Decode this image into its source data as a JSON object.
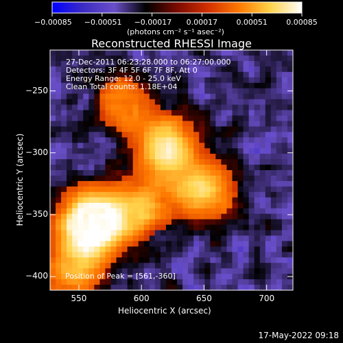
{
  "chart_data": {
    "type": "heatmap",
    "title": "Reconstructed RHESSI Image",
    "xlabel": "Heliocentric X (arcsec)",
    "ylabel": "Heliocentric Y (arcsec)",
    "xlim": [
      527,
      721
    ],
    "ylim": [
      -411,
      -217
    ],
    "x_ticks": [
      550,
      600,
      650,
      700
    ],
    "y_ticks": [
      -250,
      -300,
      -350,
      -400
    ],
    "x_tick_labels": [
      "550",
      "600",
      "650",
      "700"
    ],
    "y_tick_labels": [
      "−250",
      "−300",
      "−350",
      "−400"
    ],
    "colorbar": {
      "range": [
        -0.00085,
        0.00085
      ],
      "tick_labels": [
        "−0.00085",
        "−0.00051",
        "−0.00017",
        "0.00017",
        "0.00051",
        "0.00085"
      ],
      "unit_label": "(photons cm⁻² s⁻¹ asec⁻²)",
      "colormap": [
        "#0000ff",
        "#3d2cc4",
        "#6a4fc8",
        "#000000",
        "#7a0a00",
        "#d23000",
        "#ff7a00",
        "#ffd34a",
        "#ffffff"
      ]
    },
    "annotations": {
      "time_range": "27-Dec-2011 06:23:28.000 to 06:27:00.000",
      "detectors": "Detectors: 3F 4F 5F 6F 7F 8F, Att 0",
      "energy": "Energy Range: 12.0 - 25.0 keV",
      "method": "Clean     Total counts: 1.18E+04",
      "peak": "Position of Peak = [561,-360]"
    },
    "bright_regions": [
      {
        "x": 620,
        "y": -295,
        "level": 0.85
      },
      {
        "x": 650,
        "y": -330,
        "level": 0.75
      },
      {
        "x": 600,
        "y": -345,
        "level": 0.6
      },
      {
        "x": 560,
        "y": -350,
        "level": 0.55
      },
      {
        "x": 561,
        "y": -360,
        "level": 0.95
      },
      {
        "x": 545,
        "y": -395,
        "level": 0.6
      },
      {
        "x": 585,
        "y": -260,
        "level": 0.5
      }
    ],
    "date_stamp": "17-May-2022 09:18"
  }
}
